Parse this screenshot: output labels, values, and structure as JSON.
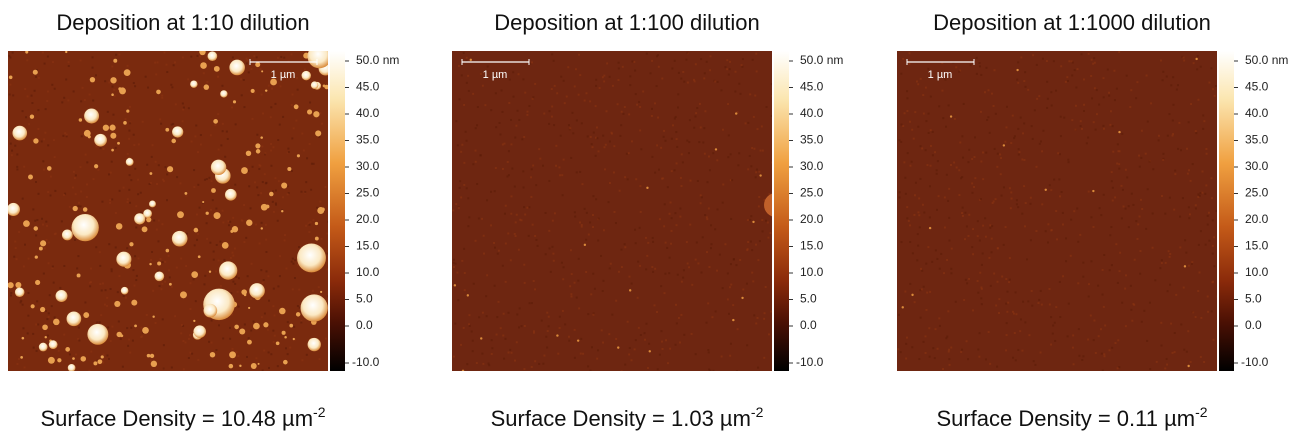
{
  "panels": [
    {
      "title": "Deposition at 1:10 dilution",
      "scale_bar": "1 µm",
      "colorbar_ticks": [
        "50.0 nm",
        "45.0",
        "40.0",
        "35.0",
        "30.0",
        "25.0",
        "20.0",
        "15.0",
        "10.0",
        "5.0",
        "0.0",
        "-10.0"
      ],
      "density": {
        "text": "Surface Density = 10.48 µm",
        "superscript": "-2"
      }
    },
    {
      "title": "Deposition at 1:100 dilution",
      "scale_bar": "1 µm",
      "colorbar_ticks": [
        "50.0 nm",
        "45.0",
        "40.0",
        "35.0",
        "30.0",
        "25.0",
        "20.0",
        "15.0",
        "10.0",
        "5.0",
        "0.0",
        "-10.0"
      ],
      "density": {
        "text": "Surface Density = 1.03 µm",
        "superscript": "-2"
      }
    },
    {
      "title": "Deposition at 1:1000 dilution",
      "scale_bar": "1 µm",
      "colorbar_ticks": [
        "50.0 nm",
        "45.0",
        "40.0",
        "35.0",
        "30.0",
        "25.0",
        "20.0",
        "15.0",
        "10.0",
        "5.0",
        "0.0",
        "-10.0"
      ],
      "density": {
        "text": "Surface Density = 0.11 µm",
        "superscript": "-2"
      }
    }
  ]
}
